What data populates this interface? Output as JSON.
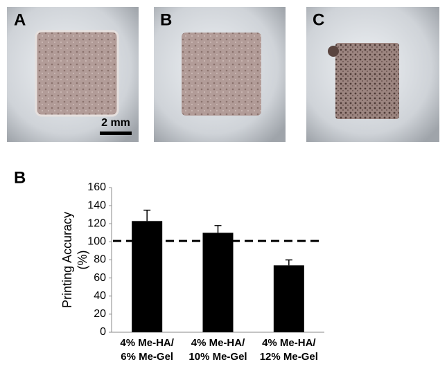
{
  "chart_data": {
    "type": "bar",
    "panel_labels": [
      "A",
      "B",
      "C"
    ],
    "scale_bar_label": "2 mm",
    "figure_label": "B",
    "ylabel": [
      "Printing Accuracy",
      "(%)"
    ],
    "categories": [
      [
        "4%  Me-HA/",
        "6%  Me-Gel"
      ],
      [
        "4%  Me-HA/",
        "10%  Me-Gel"
      ],
      [
        "4%  Me-HA/",
        "12%  Me-Gel"
      ]
    ],
    "values": [
      123,
      110,
      74
    ],
    "errors": [
      12,
      8,
      6
    ],
    "color": "#000000",
    "reference_line": 101,
    "ylim": [
      0,
      160
    ],
    "yticks": [
      0,
      20,
      40,
      60,
      80,
      100,
      120,
      140,
      160
    ]
  }
}
